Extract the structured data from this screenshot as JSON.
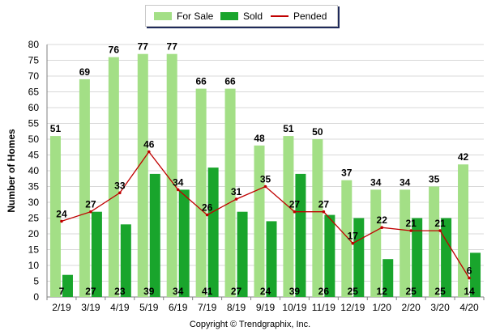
{
  "legend": {
    "for_sale": "For Sale",
    "sold": "Sold",
    "pended": "Pended"
  },
  "copyright": "Copyright © Trendgraphix, Inc.",
  "colors": {
    "for_sale": "#a3df86",
    "sold": "#19a52c",
    "pended": "#c00000",
    "grid": "#d8d8d8",
    "axis": "#808080"
  },
  "chart_data": {
    "type": "bar",
    "categories": [
      "2/19",
      "3/19",
      "4/19",
      "5/19",
      "6/19",
      "7/19",
      "8/19",
      "9/19",
      "10/19",
      "11/19",
      "12/19",
      "1/20",
      "2/20",
      "3/20",
      "4/20"
    ],
    "series": [
      {
        "name": "For Sale",
        "type": "bar",
        "values": [
          51,
          69,
          76,
          77,
          77,
          66,
          66,
          48,
          51,
          50,
          37,
          34,
          34,
          35,
          42
        ]
      },
      {
        "name": "Sold",
        "type": "bar",
        "values": [
          7,
          27,
          23,
          39,
          34,
          41,
          27,
          24,
          39,
          26,
          25,
          12,
          25,
          25,
          14
        ]
      },
      {
        "name": "Pended",
        "type": "line",
        "values": [
          24,
          27,
          33,
          46,
          34,
          26,
          31,
          35,
          27,
          27,
          17,
          22,
          21,
          21,
          6
        ]
      }
    ],
    "ylabel": "Number of Homes",
    "xlabel": "",
    "ylim": [
      0,
      80
    ],
    "yticks": [
      0,
      5,
      10,
      15,
      20,
      25,
      30,
      35,
      40,
      45,
      50,
      55,
      60,
      65,
      70,
      75,
      80
    ],
    "grid": true,
    "legend_position": "top-center"
  }
}
